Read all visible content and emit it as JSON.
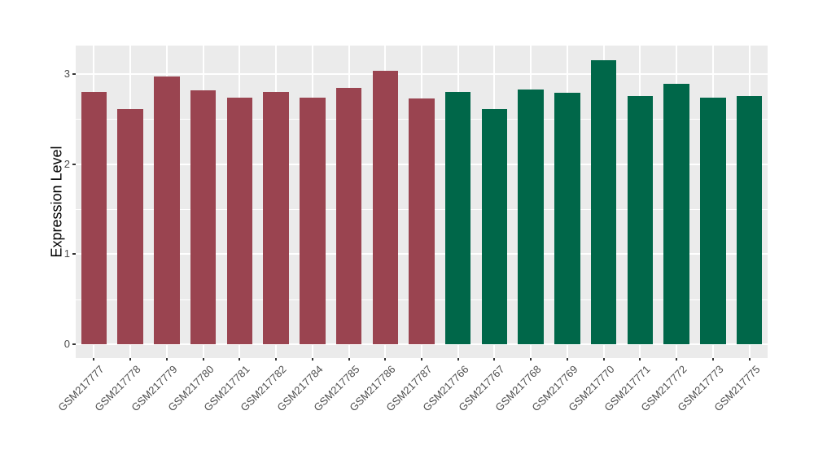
{
  "chart_data": {
    "type": "bar",
    "title": "",
    "xlabel": "",
    "ylabel": "Expression Level",
    "ylim": [
      0,
      3.32
    ],
    "yticks_major": [
      0,
      1,
      2,
      3
    ],
    "yticks_minor": [
      0.5,
      1.5,
      2.5
    ],
    "grid": "on",
    "legend": "none",
    "categories": [
      "GSM217777",
      "GSM217778",
      "GSM217779",
      "GSM217780",
      "GSM217781",
      "GSM217782",
      "GSM217784",
      "GSM217785",
      "GSM217786",
      "GSM217787",
      "GSM217766",
      "GSM217767",
      "GSM217768",
      "GSM217769",
      "GSM217770",
      "GSM217771",
      "GSM217772",
      "GSM217773",
      "GSM217775"
    ],
    "values": [
      2.8,
      2.61,
      2.97,
      2.82,
      2.74,
      2.8,
      2.74,
      2.85,
      3.04,
      2.73,
      2.8,
      2.61,
      2.83,
      2.79,
      3.15,
      2.76,
      2.89,
      2.74,
      2.76
    ],
    "groups": [
      "A",
      "A",
      "A",
      "A",
      "A",
      "A",
      "A",
      "A",
      "A",
      "A",
      "B",
      "B",
      "B",
      "B",
      "B",
      "B",
      "B",
      "B",
      "B"
    ],
    "group_colors": {
      "A": "#9A4450",
      "B": "#006749"
    },
    "panel_background": "#EBEBEB",
    "gridline_color": "#FFFFFF",
    "tick_mark_color": "#333333",
    "tick_label_color": "#4D4D4D",
    "axis_title_color": "#000000"
  }
}
